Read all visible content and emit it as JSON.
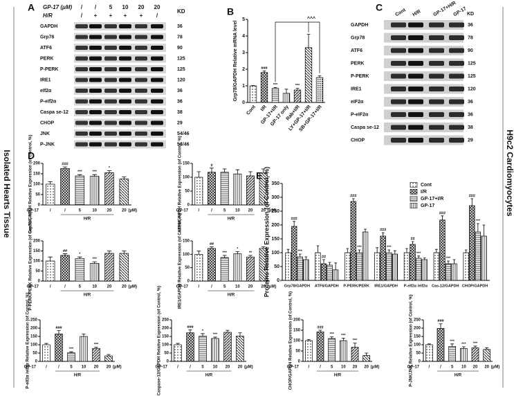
{
  "side_labels": [
    "Isolated Hearts Tissue",
    "H9c2 Cardiomyocytes"
  ],
  "blots": [
    {
      "panel": "A",
      "header_rows": [
        {
          "label": "GP-17 (μM)",
          "cells": [
            "/",
            "/",
            "5",
            "10",
            "20",
            "20"
          ]
        },
        {
          "label": "H/R",
          "cells": [
            "/",
            "+",
            "+",
            "+",
            "+",
            "/"
          ]
        }
      ],
      "kd_header": "KD",
      "rows": [
        {
          "label": "GAPDH",
          "kd": 36
        },
        {
          "label": "Grp78",
          "kd": 78
        },
        {
          "label": "ATF6",
          "kd": 90
        },
        {
          "label": "PERK",
          "kd": 125
        },
        {
          "label": "P-PERK",
          "kd": 125
        },
        {
          "label": "IRE1",
          "kd": 120
        },
        {
          "label": "eIf2α",
          "kd": 36
        },
        {
          "label": "P-eIf2α",
          "kd": 36
        },
        {
          "label": "Caspa se-12",
          "kd": 38
        },
        {
          "label": "CHOP",
          "kd": 29
        },
        {
          "label": "JNK",
          "kd": "54/46"
        },
        {
          "label": "P-JNK",
          "kd": "54/46"
        }
      ]
    },
    {
      "panel": "C",
      "columns": [
        "Cont",
        "H/R",
        "GP-17+H/R",
        "GP-17"
      ],
      "kd_header": "KD",
      "rows": [
        {
          "label": "GAPDH",
          "kd": 36
        },
        {
          "label": "Grp78",
          "kd": 78
        },
        {
          "label": "ATF6",
          "kd": 90
        },
        {
          "label": "PERK",
          "kd": 125
        },
        {
          "label": "P-PERK",
          "kd": 125
        },
        {
          "label": "IRE1",
          "kd": 120
        },
        {
          "label": "eIF2α",
          "kd": 36
        },
        {
          "label": "P-eIF2α",
          "kd": 36
        },
        {
          "label": "Caspa se-12",
          "kd": 38
        },
        {
          "label": "CHOP",
          "kd": 29
        }
      ]
    }
  ],
  "chart_data": [
    {
      "type": "bar",
      "panel": "B",
      "ylabel": "Grp78/GAPDH Relative mRNA level",
      "categories": [
        "Cont",
        "I/R",
        "GP-17+I/R",
        "GP-17 only",
        "Rab+I/R",
        "LY+GP-17+I/R",
        "SB+GP-17+I/R"
      ],
      "values": [
        1.0,
        1.8,
        0.85,
        0.55,
        0.75,
        3.3,
        1.5
      ],
      "errors": [
        0.02,
        0.1,
        0.05,
        0.25,
        0.1,
        0.8,
        0.1
      ],
      "annotations": [
        null,
        "###",
        "***",
        null,
        "***",
        null,
        null
      ],
      "bracket_label": "^^^",
      "ylim": [
        0,
        5
      ],
      "yticks": [
        0,
        1,
        2,
        3,
        4,
        5
      ]
    },
    {
      "type": "bar",
      "panel": "D",
      "ylabel": "Grp78/GAPDH Relative Expression (of Control, %)",
      "x_prefix": "GP-17",
      "categories": [
        "/",
        "/",
        "5",
        "10",
        "20",
        "20"
      ],
      "unit": "(μM)",
      "group_label": "H/R",
      "values": [
        100,
        175,
        140,
        138,
        155,
        125
      ],
      "errors": [
        12,
        8,
        6,
        8,
        10,
        10
      ],
      "annotations": [
        null,
        "###",
        "***",
        "***",
        "*",
        null
      ],
      "ylim": [
        0,
        200
      ],
      "yticks": [
        0,
        50,
        100,
        150,
        200
      ]
    },
    {
      "type": "bar",
      "ylabel": "ATF6/GAPDH Relative Expression (of Control, %)",
      "x_prefix": "GP-17",
      "categories": [
        "/",
        "/",
        "5",
        "10",
        "20",
        "20"
      ],
      "unit": "(μM)",
      "group_label": "H/R",
      "values": [
        100,
        118,
        118,
        112,
        105,
        115
      ],
      "errors": [
        20,
        15,
        12,
        15,
        15,
        15
      ],
      "annotations": [
        null,
        "#",
        null,
        null,
        null,
        null
      ],
      "ylim": [
        0,
        150
      ],
      "yticks": [
        0,
        50,
        100,
        150
      ]
    },
    {
      "type": "bar",
      "ylabel": "P-PERK/PERK Relative Expression (of Control, %)",
      "x_prefix": "GP-17",
      "categories": [
        "/",
        "/",
        "5",
        "10",
        "20",
        "20"
      ],
      "unit": "(μM)",
      "group_label": "H/R",
      "values": [
        100,
        128,
        112,
        88,
        138,
        138
      ],
      "errors": [
        20,
        8,
        8,
        8,
        12,
        12
      ],
      "annotations": [
        null,
        "##",
        "*",
        "***",
        null,
        null
      ],
      "ylim": [
        0,
        200
      ],
      "yticks": [
        0,
        50,
        100,
        150,
        200
      ]
    },
    {
      "type": "bar",
      "ylabel": "IRE1/GAPDH Relative Expression (of Control, %)",
      "x_prefix": "GP-17",
      "categories": [
        "/",
        "/",
        "5",
        "10",
        "20",
        "20"
      ],
      "unit": "(μM)",
      "group_label": "H/R",
      "values": [
        100,
        122,
        88,
        102,
        90,
        122
      ],
      "errors": [
        12,
        6,
        8,
        8,
        6,
        6
      ],
      "annotations": [
        null,
        "##",
        "***",
        "*",
        "**",
        null
      ],
      "ylim": [
        0,
        150
      ],
      "yticks": [
        0,
        50,
        100,
        150
      ]
    },
    {
      "type": "bar",
      "ylabel": "P-eIf2α /eIf2α Relative Expression (of Control, %)",
      "x_prefix": "GP-17",
      "categories": [
        "/",
        "/",
        "5",
        "10",
        "20",
        "20"
      ],
      "unit": "(μM)",
      "group_label": "H/R",
      "values": [
        100,
        165,
        52,
        150,
        78,
        33
      ],
      "errors": [
        8,
        20,
        6,
        15,
        8,
        8
      ],
      "annotations": [
        null,
        "###",
        "***",
        null,
        "***",
        null
      ],
      "ylim": [
        0,
        250
      ],
      "yticks": [
        0,
        50,
        100,
        150,
        200,
        250
      ]
    },
    {
      "type": "bar",
      "ylabel": "Caspase-12/GAPDH Relative Expression (of Control, %)",
      "x_prefix": "GP-17",
      "categories": [
        "/",
        "/",
        "5",
        "10",
        "20",
        "20"
      ],
      "unit": "(μM)",
      "group_label": "H/R",
      "values": [
        100,
        172,
        152,
        138,
        175,
        152
      ],
      "errors": [
        8,
        18,
        15,
        8,
        12,
        20
      ],
      "annotations": [
        null,
        "###",
        "*",
        "***",
        null,
        null
      ],
      "ylim": [
        0,
        250
      ],
      "yticks": [
        0,
        50,
        100,
        150,
        200,
        250
      ]
    },
    {
      "type": "bar",
      "ylabel": "CHOP/GAPDH Relative Expression (of Control, %)",
      "x_prefix": "GP-17",
      "categories": [
        "/",
        "/",
        "5",
        "10",
        "20",
        "20"
      ],
      "unit": "(μM)",
      "group_label": "H/R",
      "values": [
        100,
        142,
        110,
        100,
        68,
        28
      ],
      "errors": [
        5,
        8,
        8,
        12,
        20,
        12
      ],
      "annotations": [
        null,
        "###",
        "***",
        "***",
        "***",
        null
      ],
      "ylim": [
        0,
        200
      ],
      "yticks": [
        0,
        50,
        100,
        150,
        200
      ]
    },
    {
      "type": "bar",
      "ylabel": "P-JNK/JNK Relative Expression (of Control, %)",
      "x_prefix": "GP-17",
      "categories": [
        "/",
        "/",
        "5",
        "10",
        "20",
        "20"
      ],
      "unit": "(μM)",
      "group_label": "H/R",
      "values": [
        100,
        198,
        90,
        78,
        82,
        72
      ],
      "errors": [
        5,
        28,
        15,
        10,
        10,
        10
      ],
      "annotations": [
        null,
        "###",
        "***",
        "***",
        "***",
        null
      ],
      "ylim": [
        0,
        250
      ],
      "yticks": [
        0,
        50,
        100,
        150,
        200,
        250
      ]
    },
    {
      "type": "grouped_bar",
      "panel": "E",
      "ylabel": "Proteins Relative Expression (of Control, %)",
      "categories": [
        "Grp78/GAPDH",
        "ATF6/GAPDH",
        "P-PERK/PERK",
        "IRE1/GAPDH",
        "P-eIf2α /eIf2α",
        "Cas-12/GAPDH",
        "CHOP/GAPDH"
      ],
      "series": [
        {
          "name": "Cont",
          "values": [
            100,
            100,
            100,
            100,
            100,
            100,
            100
          ],
          "errors": [
            12,
            25,
            15,
            18,
            15,
            12,
            10
          ]
        },
        {
          "name": "I/R",
          "values": [
            195,
            60,
            285,
            160,
            130,
            218,
            270
          ],
          "errors": [
            18,
            15,
            10,
            12,
            10,
            15,
            25
          ],
          "annotations": [
            "###",
            "##",
            "###",
            "###",
            "##",
            "###",
            "###"
          ]
        },
        {
          "name": "GP-17+I/R",
          "values": [
            85,
            55,
            100,
            100,
            80,
            60,
            175
          ],
          "errors": [
            10,
            10,
            10,
            10,
            8,
            10,
            30
          ],
          "annotations": [
            "***",
            null,
            "***",
            "***",
            "***",
            "***",
            "***"
          ]
        },
        {
          "name": "GP-17",
          "values": [
            75,
            38,
            175,
            95,
            75,
            60,
            160
          ],
          "errors": [
            10,
            25,
            10,
            12,
            6,
            15,
            40
          ]
        }
      ],
      "ylim": [
        0,
        350
      ],
      "yticks": [
        0,
        50,
        100,
        150,
        200,
        250,
        300,
        350
      ]
    }
  ]
}
